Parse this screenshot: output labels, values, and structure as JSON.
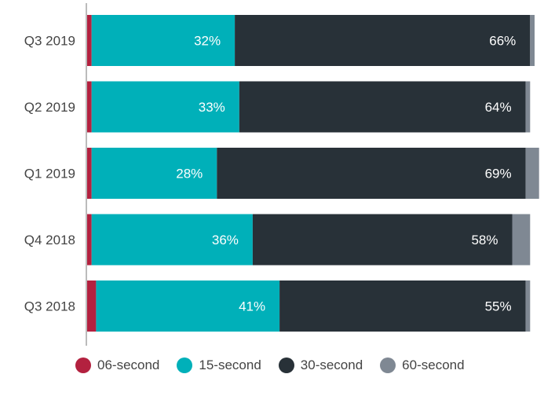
{
  "chart_data": {
    "type": "bar",
    "orientation": "horizontal",
    "stacked": true,
    "categories": [
      "Q3 2019",
      "Q2 2019",
      "Q1 2019",
      "Q4 2018",
      "Q3 2018"
    ],
    "series": [
      {
        "name": "06-second",
        "color": "#b3213f",
        "values": [
          1,
          1,
          1,
          1,
          2
        ]
      },
      {
        "name": "15-second",
        "color": "#00b0b9",
        "values": [
          32,
          33,
          28,
          36,
          41
        ],
        "labels": [
          "32%",
          "33%",
          "28%",
          "36%",
          "41%"
        ]
      },
      {
        "name": "30-second",
        "color": "#283138",
        "values": [
          66,
          64,
          69,
          58,
          55
        ],
        "labels": [
          "66%",
          "64%",
          "69%",
          "58%",
          "55%"
        ]
      },
      {
        "name": "60-second",
        "color": "#7f8893",
        "values": [
          1,
          1,
          3,
          4,
          1
        ]
      }
    ],
    "xlim": [
      0,
      100
    ],
    "grid": false,
    "legend_position": "bottom"
  }
}
